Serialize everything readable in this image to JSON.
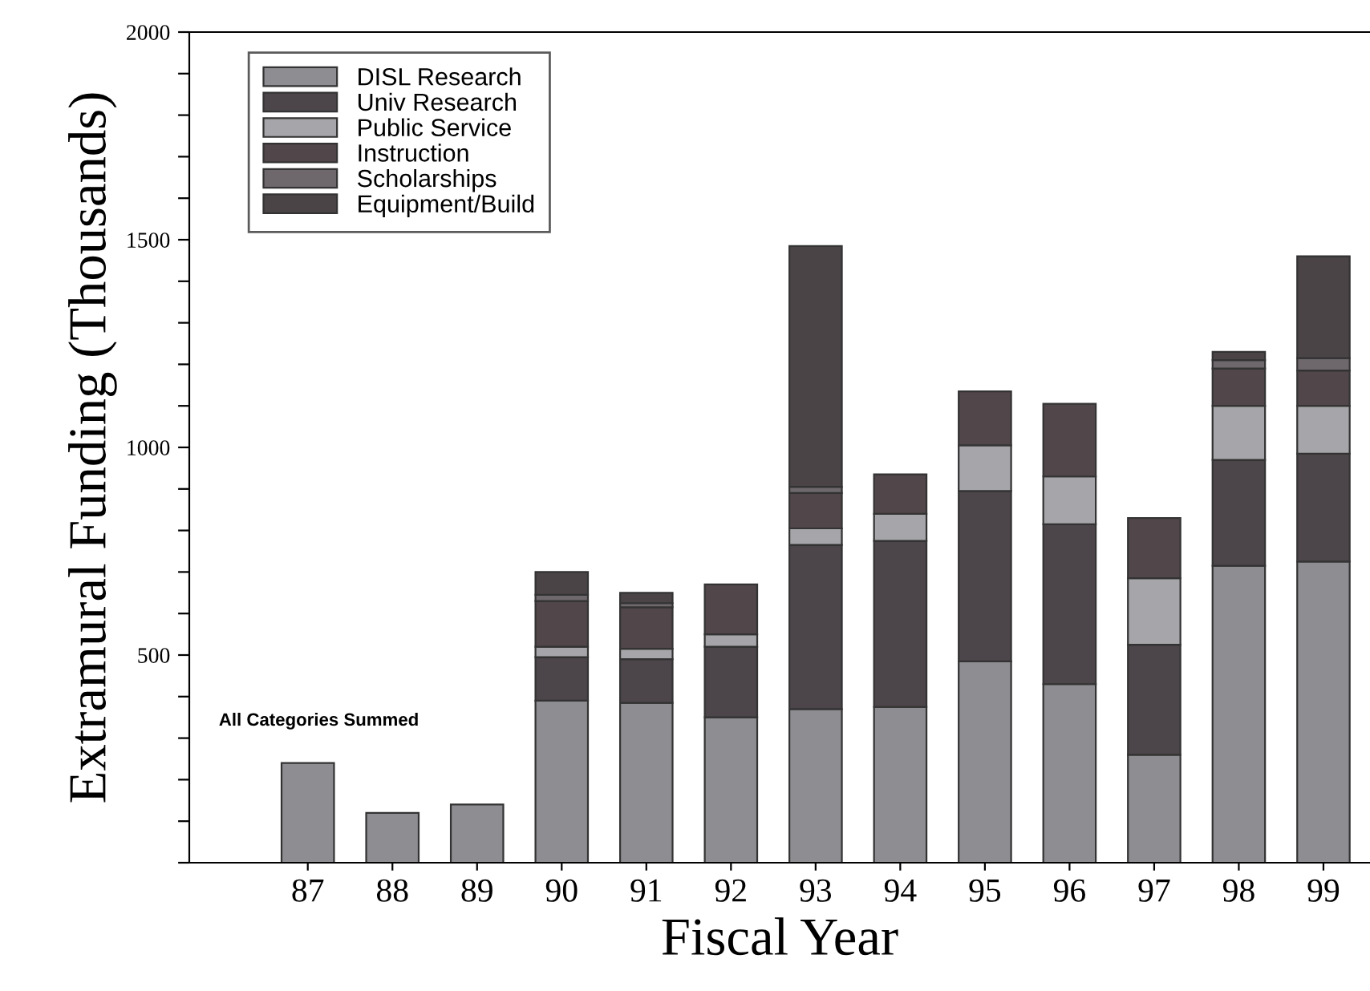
{
  "chart_data": {
    "type": "bar",
    "stacked": true,
    "xlabel": "Fiscal Year",
    "ylabel": "Extramural Funding (Thousands)",
    "categories": [
      "87",
      "88",
      "89",
      "90",
      "91",
      "92",
      "93",
      "94",
      "95",
      "96",
      "97",
      "98",
      "99"
    ],
    "series": [
      {
        "name": "DISL Research",
        "color": "#8e8e92",
        "values": [
          240,
          120,
          140,
          390,
          385,
          350,
          370,
          375,
          485,
          430,
          260,
          715,
          725
        ]
      },
      {
        "name": "Univ Research",
        "color": "#4c464a",
        "values": [
          null,
          null,
          null,
          105,
          105,
          170,
          395,
          400,
          410,
          385,
          265,
          255,
          260
        ]
      },
      {
        "name": "Public Service",
        "color": "#a6a6aa",
        "values": [
          null,
          null,
          null,
          25,
          25,
          30,
          40,
          65,
          110,
          115,
          160,
          130,
          115
        ]
      },
      {
        "name": "Instruction",
        "color": "#514649",
        "values": [
          null,
          null,
          null,
          110,
          100,
          120,
          85,
          95,
          130,
          175,
          145,
          90,
          85
        ]
      },
      {
        "name": "Scholarships",
        "color": "#6e686c",
        "values": [
          null,
          null,
          null,
          15,
          10,
          null,
          15,
          null,
          null,
          null,
          null,
          20,
          30
        ]
      },
      {
        "name": "Equipment/Build",
        "color": "#4a4447",
        "values": [
          null,
          null,
          null,
          55,
          25,
          null,
          580,
          null,
          null,
          null,
          null,
          20,
          245
        ]
      }
    ],
    "ylim": [
      0,
      2000
    ],
    "yticks": [
      {
        "value": 0,
        "label": null
      },
      {
        "value": 100,
        "label": null
      },
      {
        "value": 200,
        "label": null
      },
      {
        "value": 300,
        "label": null
      },
      {
        "value": 400,
        "label": null
      },
      500,
      {
        "value": 600,
        "label": null
      },
      {
        "value": 700,
        "label": null
      },
      {
        "value": 800,
        "label": null
      },
      {
        "value": 900,
        "label": null
      },
      1000,
      {
        "value": 1100,
        "label": null
      },
      {
        "value": 1200,
        "label": null
      },
      {
        "value": 1300,
        "label": null
      },
      {
        "value": 1400,
        "label": null
      },
      1500,
      {
        "value": 1600,
        "label": null
      },
      {
        "value": 1700,
        "label": null
      },
      {
        "value": 1800,
        "label": null
      },
      {
        "value": 1900,
        "label": null
      },
      2000
    ],
    "annotations": [
      "All Categories Summed"
    ],
    "legend": "top left",
    "grid": false
  }
}
